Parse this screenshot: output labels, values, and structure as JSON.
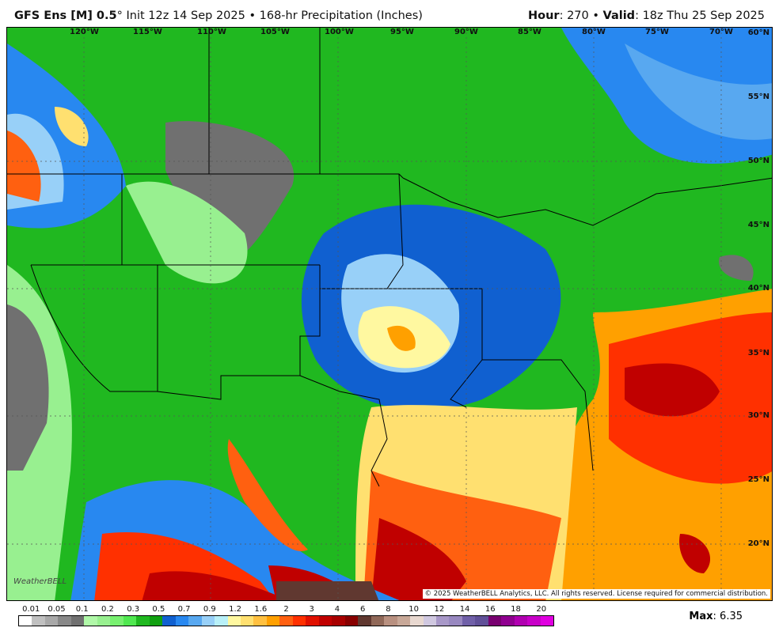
{
  "header": {
    "model": "GFS Ens [M] 0.5",
    "deg": "°",
    "init": " Init 12z 14 Sep 2025 • 168-hr Precipitation (Inches)",
    "hour_label": "Hour",
    "hour": ": 270 • ",
    "valid_label": "Valid",
    "valid": ": 18z Thu 25 Sep 2025"
  },
  "map": {
    "lon_labels": [
      "120°W",
      "115°W",
      "110°W",
      "105°W",
      "100°W",
      "95°W",
      "90°W",
      "85°W",
      "80°W",
      "75°W",
      "70°W"
    ],
    "lat_labels": [
      "60°N",
      "55°N",
      "50°N",
      "45°N",
      "40°N",
      "35°N",
      "30°N",
      "25°N",
      "20°N"
    ],
    "copyright": "© 2025 WeatherBELL Analytics, LLC. All rights reserved. License required for commercial distribution.",
    "logo": "WeatherBELL"
  },
  "legend": {
    "ticks": [
      "0.01",
      "0.05",
      "0.1",
      "0.2",
      "0.3",
      "0.5",
      "0.7",
      "0.9",
      "1.2",
      "1.6",
      "2",
      "3",
      "4",
      "6",
      "8",
      "10",
      "12",
      "14",
      "16",
      "18",
      "20"
    ],
    "colors": [
      "#ffffff",
      "#c0c0c0",
      "#a8a8a8",
      "#888888",
      "#707070",
      "#b0f8a8",
      "#98f090",
      "#78f070",
      "#50e850",
      "#20b820",
      "#10a010",
      "#1060d0",
      "#2888f0",
      "#58a8f0",
      "#98d0f8",
      "#b8f0f8",
      "#fff8a0",
      "#ffe070",
      "#ffc040",
      "#ffa000",
      "#ff6010",
      "#ff3000",
      "#e01000",
      "#c00000",
      "#a80000",
      "#880000",
      "#603830",
      "#906858",
      "#b89080",
      "#c8a898",
      "#e8d8d0",
      "#d0c8e0",
      "#a898c8",
      "#9888c0",
      "#7060a8",
      "#605098",
      "#780070",
      "#900090",
      "#b000b0",
      "#c800c8",
      "#e000e0"
    ],
    "max_label": "Max",
    "max_value": ": 6.35"
  }
}
